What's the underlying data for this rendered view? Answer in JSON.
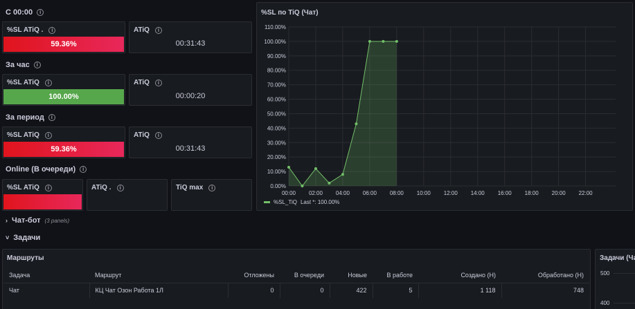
{
  "sections": {
    "today": "С 00:00",
    "hour": "За час",
    "period": "За период",
    "online": "Online (В очереди)"
  },
  "stats": {
    "today_sl": {
      "title": "%SL ATiQ .",
      "value": "59.36%",
      "fraction": 0.5936
    },
    "today_atiq": {
      "title": "ATiQ",
      "value": "00:31:43"
    },
    "hour_sl": {
      "title": "%SL ATiQ",
      "value": "100.00%",
      "fraction": 1.0
    },
    "hour_atiq": {
      "title": "ATiQ",
      "value": "00:00:20"
    },
    "period_sl": {
      "title": "%SL ATiQ",
      "value": "59.36%",
      "fraction": 0.5936
    },
    "period_atiq": {
      "title": "ATiQ",
      "value": "00:31:43"
    },
    "online_sl": {
      "title": "%SL ATiQ",
      "value": ""
    },
    "online_atiq": {
      "title": "ATiQ .",
      "value": ""
    },
    "online_tiq": {
      "title": "TiQ max",
      "value": ""
    }
  },
  "chart_panel": {
    "title": "%SL по TiQ (Чат)",
    "legend": "%SL_TiQ",
    "legend_last": "Last *: 100.00%"
  },
  "chart_data": {
    "type": "area",
    "ylim": [
      0,
      110
    ],
    "y_ticks": [
      "0.00%",
      "10.00%",
      "20.00%",
      "30.00%",
      "40.00%",
      "50.00%",
      "60.00%",
      "70.00%",
      "80.00%",
      "90.00%",
      "100.00%",
      "110.00%"
    ],
    "x_ticks": [
      "00:00",
      "02:00",
      "04:00",
      "06:00",
      "08:00",
      "10:00",
      "12:00",
      "14:00",
      "16:00",
      "18:00",
      "20:00",
      "22:00"
    ],
    "series": [
      {
        "name": "%SL_TiQ",
        "x": [
          "00:00",
          "01:00",
          "02:00",
          "03:00",
          "04:00",
          "05:00",
          "06:00",
          "07:00",
          "08:00"
        ],
        "values": [
          13,
          0,
          12,
          2,
          8,
          43,
          100,
          100,
          100
        ]
      }
    ],
    "color": "#73bf69",
    "grid": true
  },
  "rows": {
    "chatbot": "Чат-бот",
    "chatbot_note": "(3 panels)",
    "tasks": "Задачи"
  },
  "routes": {
    "title": "Маршруты",
    "columns": [
      "Задача",
      "Маршрут",
      "Отложены",
      "В очереди",
      "Новые",
      "В работе",
      "Создано (Н)",
      "Обработано (Н)"
    ],
    "rows": [
      [
        "Чат",
        "КЦ Чат Озон Работа 1Л",
        "0",
        "0",
        "422",
        "5",
        "1 118",
        "748"
      ]
    ]
  },
  "tasks_panel": {
    "title": "Задачи (Ча",
    "ticks": [
      "500",
      "400"
    ]
  }
}
